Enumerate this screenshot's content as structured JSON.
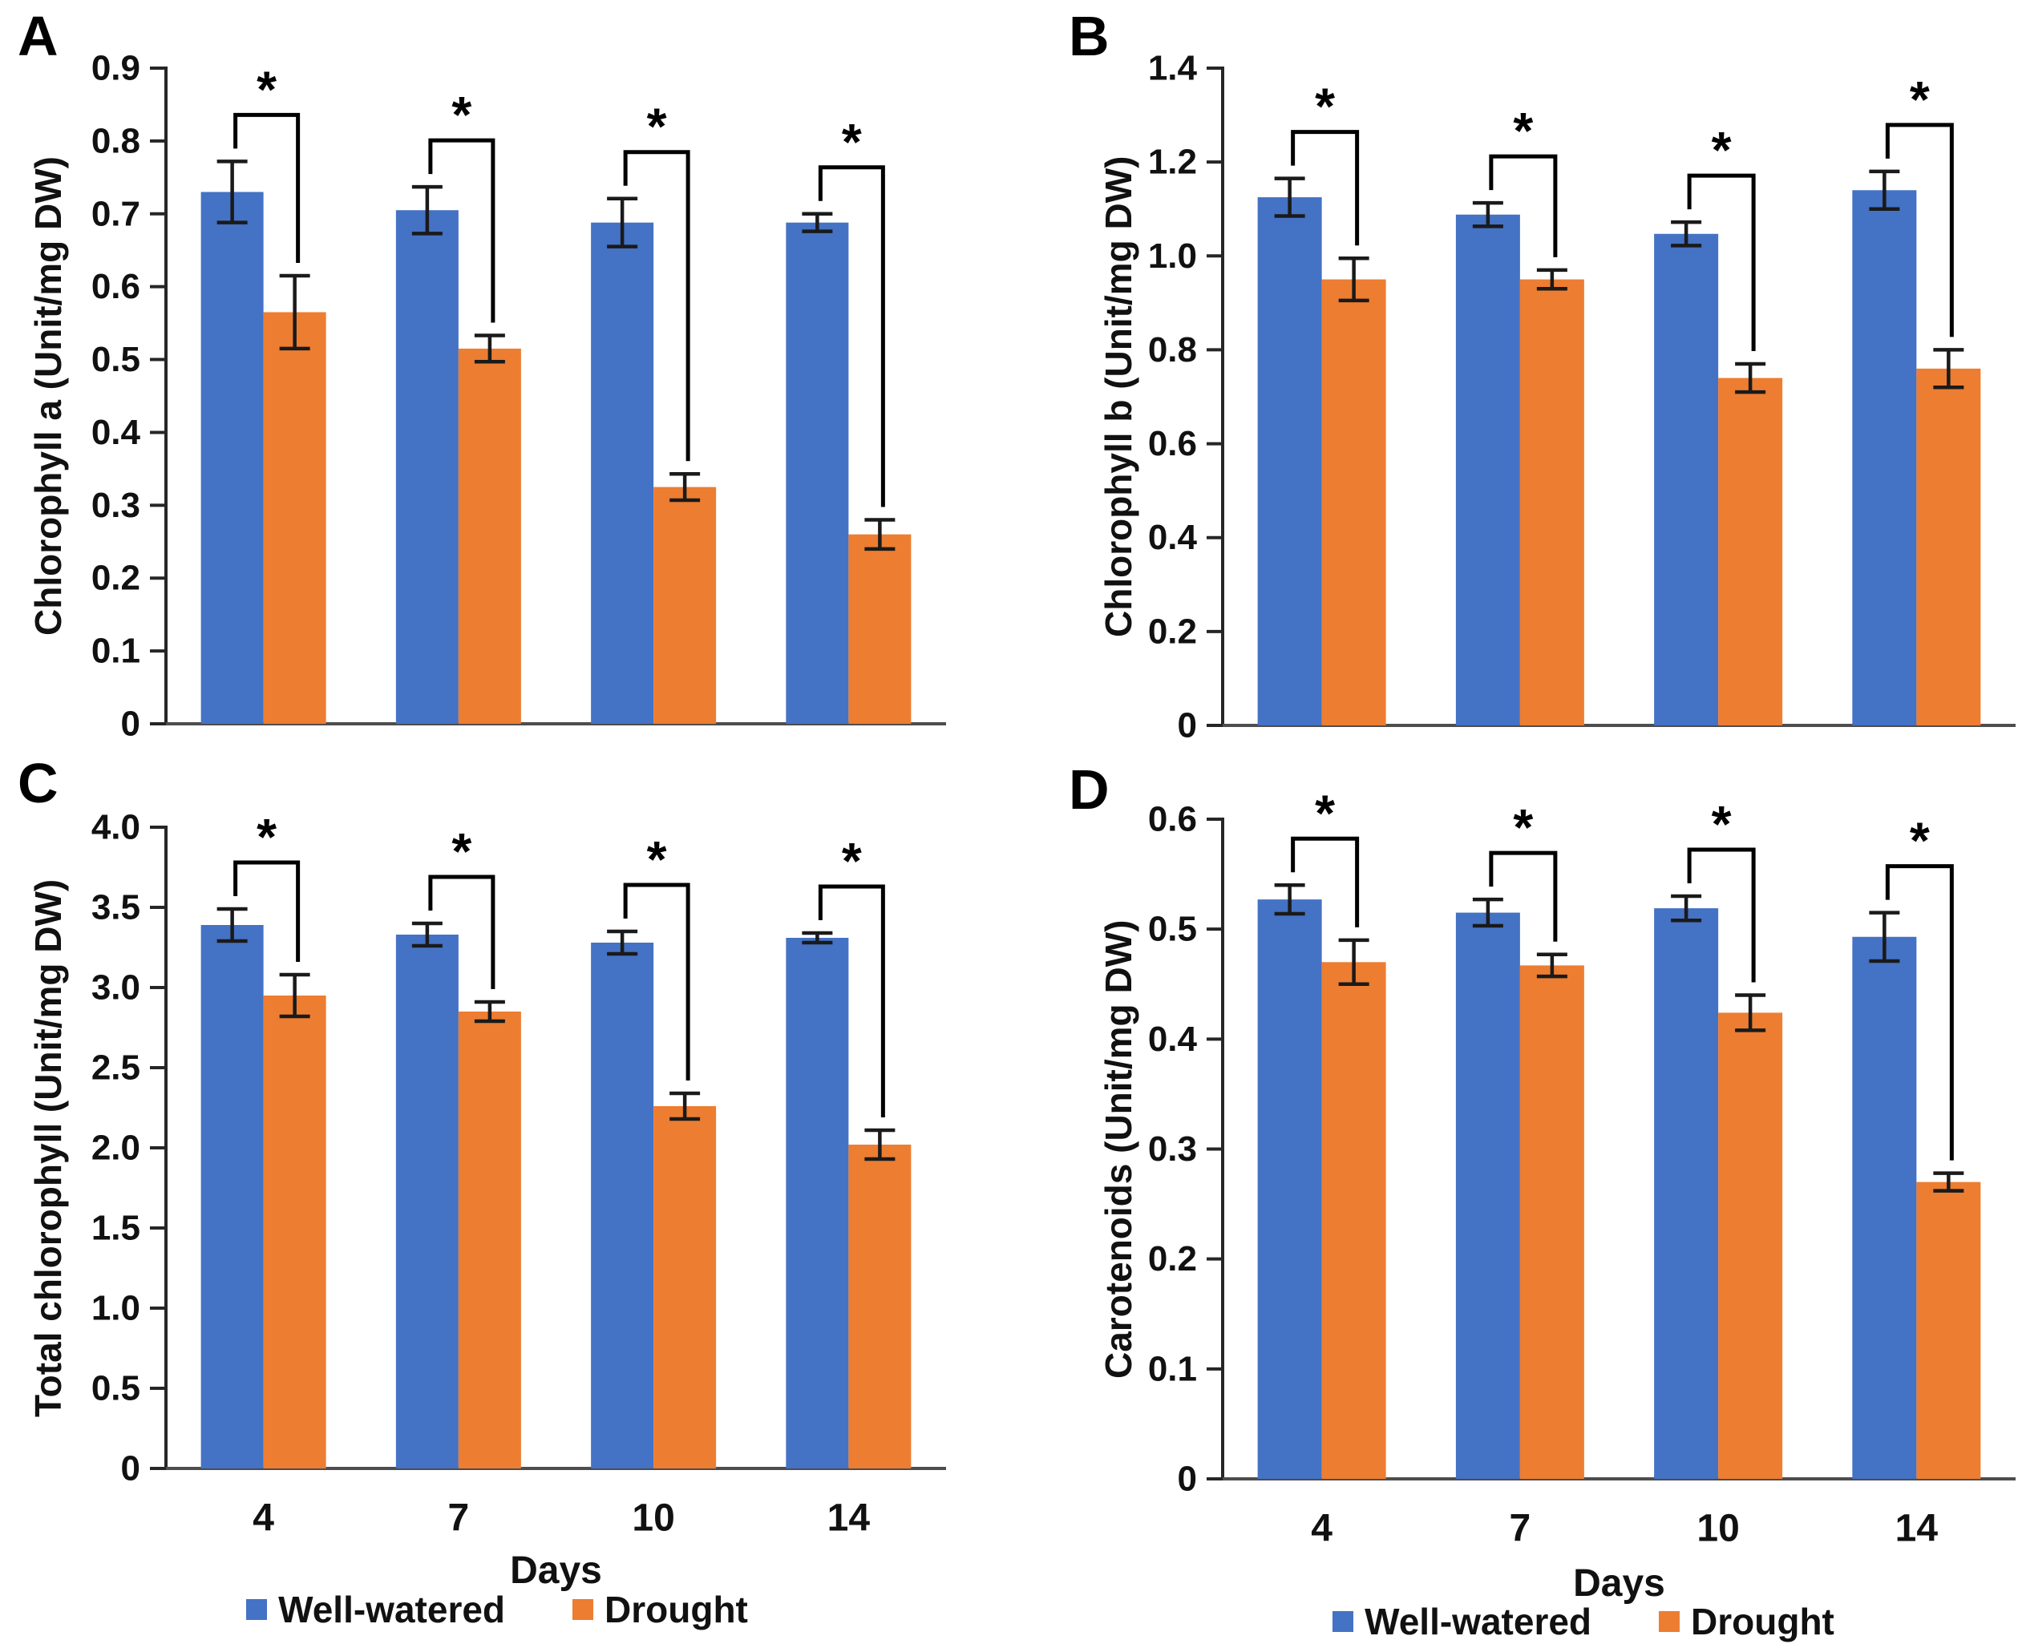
{
  "figure": {
    "description": "Four-panel bar chart of pigment contents under well-watered vs drought conditions",
    "panels": [
      "A",
      "B",
      "C",
      "D"
    ]
  },
  "colors": {
    "well_watered": "#4472C4",
    "drought": "#ED7D31",
    "axis": "#262626",
    "baseline": "#4d4d4d",
    "error_bar": "#1a1a1a",
    "bracket": "#000000",
    "text": "#111111"
  },
  "legend": {
    "items": [
      {
        "label": "Well-watered",
        "color": "#4472C4"
      },
      {
        "label": "Drought",
        "color": "#ED7D31"
      }
    ]
  },
  "chart_data": [
    {
      "type": "bar",
      "panel_label": "A",
      "title": "",
      "ylabel": "Chlorophyll a (Unit/mg DW)",
      "xlabel": "",
      "categories": [
        "4",
        "7",
        "10",
        "14"
      ],
      "show_x_labels": false,
      "ylim": [
        0,
        0.9
      ],
      "yticks": [
        0,
        0.1,
        0.2,
        0.3,
        0.4,
        0.5,
        0.6,
        0.7,
        0.8,
        0.9
      ],
      "ytick_labels": [
        "0",
        "0.1",
        "0.2",
        "0.3",
        "0.4",
        "0.5",
        "0.6",
        "0.7",
        "0.8",
        "0.9"
      ],
      "series": [
        {
          "name": "Well-watered",
          "values": [
            0.73,
            0.705,
            0.688,
            0.688
          ],
          "errors": [
            0.042,
            0.032,
            0.033,
            0.012
          ]
        },
        {
          "name": "Drought",
          "values": [
            0.565,
            0.515,
            0.325,
            0.26
          ],
          "errors": [
            0.05,
            0.018,
            0.018,
            0.02
          ]
        }
      ],
      "significance": [
        "*",
        "*",
        "*",
        "*"
      ],
      "legend_position": "none",
      "grid": false
    },
    {
      "type": "bar",
      "panel_label": "B",
      "title": "",
      "ylabel": "Chlorophyll b (Unit/mg DW)",
      "xlabel": "",
      "categories": [
        "4",
        "7",
        "10",
        "14"
      ],
      "show_x_labels": false,
      "ylim": [
        0,
        1.4
      ],
      "yticks": [
        0,
        0.2,
        0.4,
        0.6,
        0.8,
        1.0,
        1.2,
        1.4
      ],
      "ytick_labels": [
        "0",
        "0.2",
        "0.4",
        "0.6",
        "0.8",
        "1.0",
        "1.2",
        "1.4"
      ],
      "series": [
        {
          "name": "Well-watered",
          "values": [
            1.125,
            1.088,
            1.047,
            1.14
          ],
          "errors": [
            0.04,
            0.025,
            0.025,
            0.04
          ]
        },
        {
          "name": "Drought",
          "values": [
            0.95,
            0.95,
            0.74,
            0.76
          ],
          "errors": [
            0.045,
            0.02,
            0.03,
            0.04
          ]
        }
      ],
      "significance": [
        "*",
        "*",
        "*",
        "*"
      ],
      "legend_position": "none",
      "grid": false
    },
    {
      "type": "bar",
      "panel_label": "C",
      "title": "",
      "ylabel": "Total chlorophyll (Unit/mg DW)",
      "xlabel": "Days",
      "categories": [
        "4",
        "7",
        "10",
        "14"
      ],
      "show_x_labels": true,
      "ylim": [
        0,
        4.0
      ],
      "yticks": [
        0,
        0.5,
        1.0,
        1.5,
        2.0,
        2.5,
        3.0,
        3.5,
        4.0
      ],
      "ytick_labels": [
        "0",
        "0.5",
        "1.0",
        "1.5",
        "2.0",
        "2.5",
        "3.0",
        "3.5",
        "4.0"
      ],
      "series": [
        {
          "name": "Well-watered",
          "values": [
            3.39,
            3.33,
            3.28,
            3.31
          ],
          "errors": [
            0.1,
            0.07,
            0.07,
            0.03
          ]
        },
        {
          "name": "Drought",
          "values": [
            2.95,
            2.85,
            2.26,
            2.02
          ],
          "errors": [
            0.13,
            0.06,
            0.08,
            0.09
          ]
        }
      ],
      "significance": [
        "*",
        "*",
        "*",
        "*"
      ],
      "legend_position": "bottom",
      "grid": false
    },
    {
      "type": "bar",
      "panel_label": "D",
      "title": "",
      "ylabel": "Carotenoids (Unit/mg DW)",
      "xlabel": "Days",
      "categories": [
        "4",
        "7",
        "10",
        "14"
      ],
      "show_x_labels": true,
      "ylim": [
        0,
        0.6
      ],
      "yticks": [
        0,
        0.1,
        0.2,
        0.3,
        0.4,
        0.5,
        0.6
      ],
      "ytick_labels": [
        "0",
        "0.1",
        "0.2",
        "0.3",
        "0.4",
        "0.5",
        "0.6"
      ],
      "series": [
        {
          "name": "Well-watered",
          "values": [
            0.527,
            0.515,
            0.519,
            0.493
          ],
          "errors": [
            0.013,
            0.012,
            0.011,
            0.022
          ]
        },
        {
          "name": "Drought",
          "values": [
            0.47,
            0.467,
            0.424,
            0.27
          ],
          "errors": [
            0.02,
            0.01,
            0.016,
            0.008
          ]
        }
      ],
      "significance": [
        "*",
        "*",
        "*",
        "*"
      ],
      "legend_position": "bottom",
      "grid": false
    }
  ]
}
